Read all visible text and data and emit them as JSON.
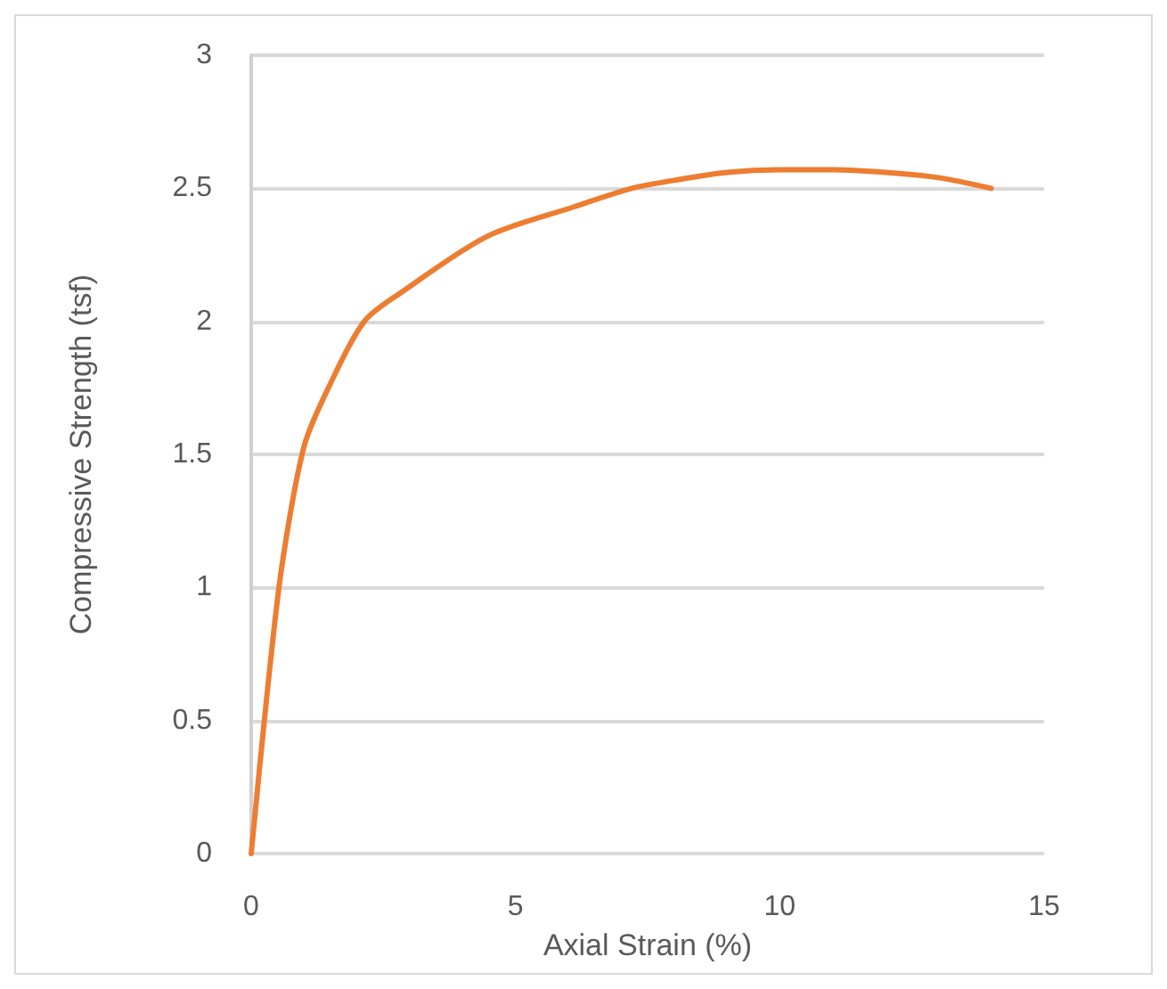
{
  "chart_data": {
    "type": "line",
    "xlabel": "Axial Strain (%)",
    "ylabel": "Compressive Strength (tsf)",
    "x": [
      0,
      0.3,
      0.58,
      1.0,
      1.46,
      2.14,
      2.85,
      4.47,
      6.1,
      7.2,
      8,
      9,
      10,
      11,
      12,
      13,
      14
    ],
    "series": [
      {
        "color": "#ed7d31",
        "values": [
          0,
          0.6,
          1.08,
          1.53,
          1.75,
          2.0,
          2.11,
          2.32,
          2.43,
          2.5,
          2.53,
          2.56,
          2.57,
          2.57,
          2.56,
          2.54,
          2.5
        ]
      }
    ],
    "xlim": [
      0,
      15
    ],
    "xticks": [
      0,
      5,
      10,
      15
    ],
    "ylim": [
      0,
      3
    ],
    "yticks": [
      0,
      0.5,
      1,
      1.5,
      2,
      2.5,
      3
    ],
    "grid": "y",
    "marker": "none",
    "line_style": "solid"
  }
}
